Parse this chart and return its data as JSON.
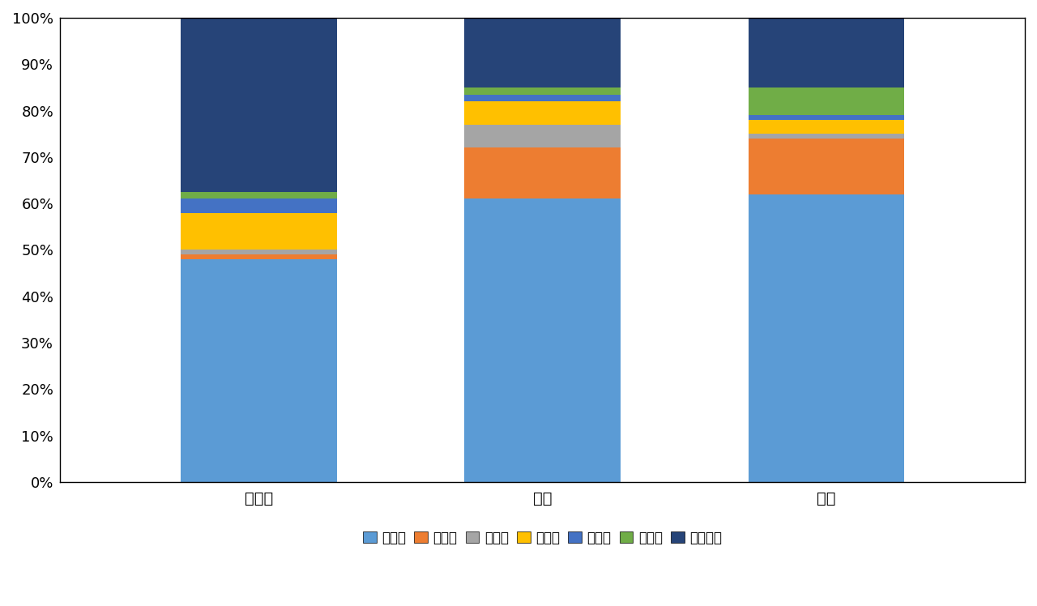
{
  "categories": [
    "本科生",
    "硕士",
    "博士"
  ],
  "series": [
    {
      "name": "江苏省",
      "values": [
        0.48,
        0.61,
        0.62
      ],
      "color": "#5B9BD5"
    },
    {
      "name": "上海市",
      "values": [
        0.01,
        0.11,
        0.12
      ],
      "color": "#ED7D31"
    },
    {
      "name": "浙江省",
      "values": [
        0.01,
        0.05,
        0.01
      ],
      "color": "#A5A5A5"
    },
    {
      "name": "广东省",
      "values": [
        0.08,
        0.05,
        0.03
      ],
      "color": "#FFC000"
    },
    {
      "name": "安徽省",
      "values": [
        0.03,
        0.015,
        0.01
      ],
      "color": "#4472C4"
    },
    {
      "name": "山东省",
      "values": [
        0.015,
        0.015,
        0.06
      ],
      "color": "#70AD47"
    },
    {
      "name": "其他地区",
      "values": [
        0.375,
        0.15,
        0.15
      ],
      "color": "#264478"
    }
  ],
  "yticks": [
    0.0,
    0.1,
    0.2,
    0.3,
    0.4,
    0.5,
    0.6,
    0.7,
    0.8,
    0.9,
    1.0
  ],
  "ytick_labels": [
    "0%",
    "10%",
    "20%",
    "30%",
    "40%",
    "50%",
    "60%",
    "70%",
    "80%",
    "90%",
    "100%"
  ],
  "bar_width": 0.55,
  "background_color": "#FFFFFF",
  "legend_fontsize": 12,
  "tick_fontsize": 13,
  "category_fontsize": 14
}
